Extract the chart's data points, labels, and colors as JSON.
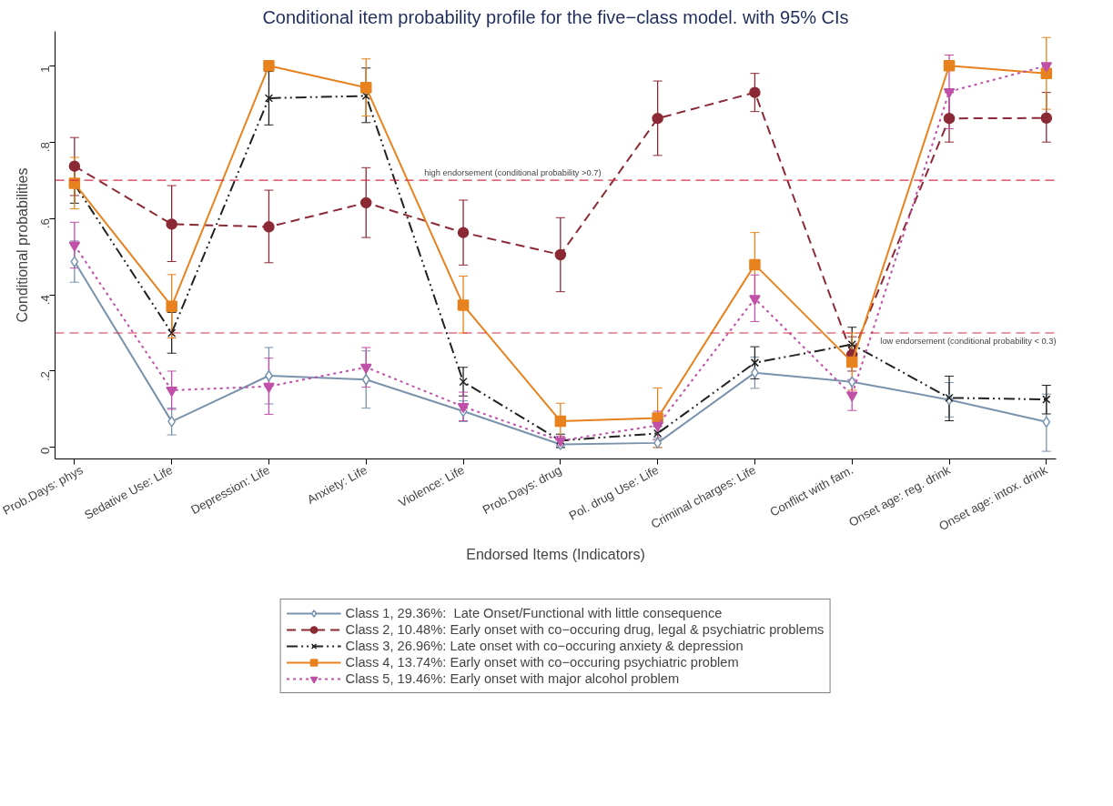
{
  "chart_data": {
    "type": "line",
    "title": "Conditional item probability profile for the five−class model. with 95% CIs",
    "xlabel": "Endorsed Items (Indicators)",
    "ylabel": "Conditional probabilities",
    "categories": [
      "Prob.Days: phys",
      "Sedative Use: Life",
      "Depression: Life",
      "Anxiety: Life",
      "Violence: Life",
      "Prob.Days: drug",
      "Pol. drug Use: Life",
      "Criminal charges: Life",
      "Conflict with fam.",
      "Onset age: reg. drink",
      "Onset age: intox. drink"
    ],
    "ylim": [
      -0.03,
      1.09
    ],
    "yticks": [
      {
        "value": 0,
        "label": "0"
      },
      {
        "value": 0.2,
        "label": ".2"
      },
      {
        "value": 0.4,
        "label": ".4"
      },
      {
        "value": 0.6,
        "label": ".6"
      },
      {
        "value": 0.8,
        "label": ".8"
      },
      {
        "value": 1,
        "label": "1"
      }
    ],
    "grid": false,
    "legend": "bottom",
    "series": [
      {
        "name": "Class 1, 29.36%:  Late Onset/Functional with little consequence",
        "color": "#7a93ad",
        "marker": "diamond",
        "line_style": "solid",
        "values": [
          0.487,
          0.068,
          0.188,
          0.178,
          0.095,
          0.008,
          0.012,
          0.196,
          0.172,
          0.125,
          0.067
        ],
        "errors": [
          [
            0.433,
            0.541
          ],
          [
            0.033,
            0.103
          ],
          [
            0.114,
            0.262
          ],
          [
            0.103,
            0.253
          ],
          [
            0.068,
            0.122
          ],
          [
            0.0,
            0.02
          ],
          [
            0.0,
            0.025
          ],
          [
            0.155,
            0.237
          ],
          null,
          [
            0.08,
            0.17
          ],
          [
            -0.01,
            0.14
          ]
        ]
      },
      {
        "name": "Class 2, 10.48%: Early onset with co−occuring drug, legal & psychiatric problems",
        "color": "#8b2a35",
        "marker": "circle",
        "line_style": "dashed",
        "values": [
          0.737,
          0.585,
          0.578,
          0.641,
          0.563,
          0.505,
          0.862,
          0.93,
          0.243,
          0.862,
          0.863
        ],
        "errors": [
          [
            0.66,
            0.812
          ],
          [
            0.487,
            0.686
          ],
          [
            0.484,
            0.674
          ],
          [
            0.55,
            0.733
          ],
          [
            0.478,
            0.648
          ],
          [
            0.408,
            0.602
          ],
          [
            0.765,
            0.96
          ],
          [
            0.88,
            0.98
          ],
          [
            0.2,
            0.29
          ],
          [
            0.8,
            0.93
          ],
          [
            0.8,
            0.93
          ]
        ]
      },
      {
        "name": "Class 3, 26.96%: Late onset with co−occuring anxiety & depression",
        "color": "#222222",
        "marker": "x",
        "line_style": "dashdot",
        "values": [
          0.69,
          0.3,
          0.915,
          0.921,
          0.172,
          0.018,
          0.037,
          0.222,
          0.27,
          0.13,
          0.126
        ],
        "errors": [
          0.05,
          [
            0.247,
            0.354
          ],
          [
            0.845,
            0.985
          ],
          [
            0.851,
            0.994
          ],
          [
            0.135,
            0.21
          ],
          [
            0.0,
            0.035
          ],
          [
            0.02,
            0.055
          ],
          [
            0.18,
            0.264
          ],
          0.045,
          [
            0.07,
            0.187
          ],
          [
            0.088,
            0.163
          ]
        ]
      },
      {
        "name": "Class 4, 13.74%: Early onset with co−occuring psychiatric problem",
        "color": "#e8821e",
        "marker": "square",
        "line_style": "solid",
        "values": [
          0.692,
          0.37,
          1.0,
          0.943,
          0.373,
          0.069,
          0.077,
          0.479,
          0.224,
          1.0,
          0.98
        ],
        "errors": [
          [
            0.625,
            0.76
          ],
          [
            0.287,
            0.453
          ],
          null,
          [
            0.868,
            1.018
          ],
          [
            0.3,
            0.449
          ],
          [
            0.022,
            0.116
          ],
          [
            0.0,
            0.156
          ],
          [
            0.395,
            0.563
          ],
          [
            0.15,
            0.3
          ],
          null,
          [
            0.886,
            1.074
          ]
        ]
      },
      {
        "name": "Class 5, 19.46%: Early onset with major alcohol problem",
        "color": "#c050a8",
        "marker": "triangle",
        "line_style": "dotted",
        "values": [
          0.53,
          0.15,
          0.16,
          0.21,
          0.107,
          0.018,
          0.058,
          0.39,
          0.137,
          0.932,
          1.0
        ],
        "errors": [
          [
            0.47,
            0.59
          ],
          [
            0.1,
            0.2
          ],
          [
            0.087,
            0.234
          ],
          [
            0.158,
            0.262
          ],
          [
            0.07,
            0.145
          ],
          [
            0.005,
            0.03
          ],
          [
            0.02,
            0.095
          ],
          [
            0.33,
            0.452
          ],
          [
            0.097,
            0.178
          ],
          [
            0.835,
            1.028
          ],
          null
        ]
      }
    ],
    "ref_lines": [
      {
        "axis": "y",
        "value": 0.7,
        "label": "high endorsement (conditional probability >0.7)",
        "color": "#d6304a",
        "line_style": "dashed"
      },
      {
        "axis": "y",
        "value": 0.3,
        "label": "low endorsement (conditional probability < 0.3)",
        "color": "#d6304a",
        "line_style": "dashed"
      }
    ]
  }
}
